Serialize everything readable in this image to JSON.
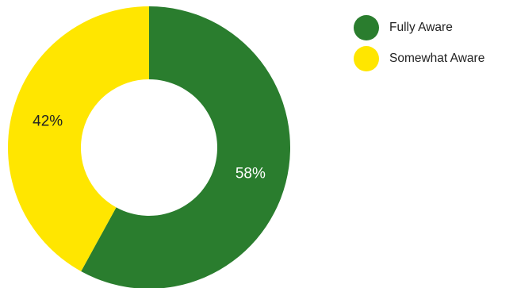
{
  "chart_data": {
    "type": "pie",
    "donut": true,
    "legend_position": "top-right",
    "slices": [
      {
        "label": "Fully Aware",
        "value": 58,
        "display": "58%",
        "color": "#2a7d2e",
        "label_color": "#ffffff"
      },
      {
        "label": "Somewhat Aware",
        "value": 42,
        "display": "42%",
        "color": "#ffe600",
        "label_color": "#222222"
      }
    ]
  }
}
